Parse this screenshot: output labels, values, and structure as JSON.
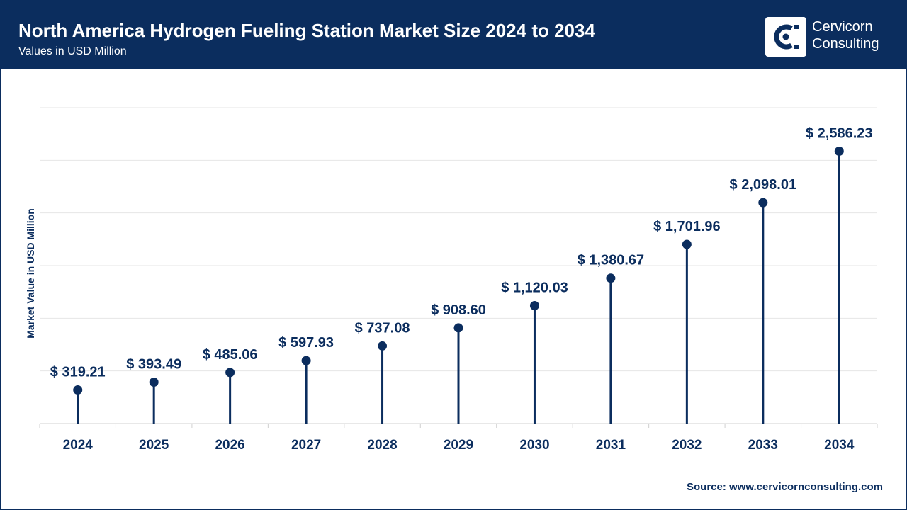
{
  "header": {
    "title": "North America Hydrogen Fueling Station Market Size 2024 to 2034",
    "subtitle": "Values in USD Million",
    "brand_line1": "Cervicorn",
    "brand_line2": "Consulting",
    "logo_icon": "cervicorn-logo-icon"
  },
  "colors": {
    "primary": "#0b2d5e",
    "grid": "#e6e6e6",
    "background": "#ffffff"
  },
  "chart_data": {
    "type": "lollipop",
    "categories": [
      "2024",
      "2025",
      "2026",
      "2027",
      "2028",
      "2029",
      "2030",
      "2031",
      "2032",
      "2033",
      "2034"
    ],
    "values": [
      319.21,
      393.49,
      485.06,
      597.93,
      737.08,
      908.6,
      1120.03,
      1380.67,
      1701.96,
      2098.01,
      2586.23
    ],
    "data_labels": [
      "$ 319.21",
      "$ 393.49",
      "$ 485.06",
      "$ 597.93",
      "$ 737.08",
      "$ 908.60",
      "$ 1,120.03",
      "$ 1,380.67",
      "$ 1,701.96",
      "$ 2,098.01",
      "$ 2,586.23"
    ],
    "ylabel": "Market Value in USD Million",
    "ylim": [
      0,
      3000
    ],
    "grid": true,
    "legend": "none"
  },
  "footer": {
    "source": "Source: www.cervicornconsulting.com"
  }
}
